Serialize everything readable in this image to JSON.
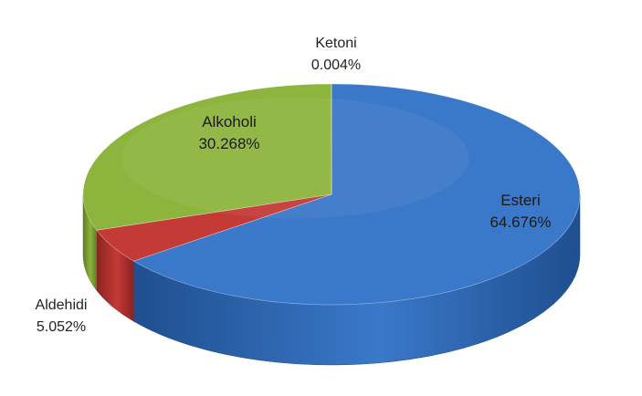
{
  "chart_data": {
    "type": "pie",
    "style": "3d",
    "title": "",
    "slices": [
      {
        "label": "Esteri",
        "value_label": "64.676%",
        "value": 64.676,
        "color": "#3a78c9",
        "side_color": "#1f4f8f"
      },
      {
        "label": "Aldehidi",
        "value_label": "5.052%",
        "value": 5.052,
        "color": "#c43a36",
        "side_color": "#8a2420"
      },
      {
        "label": "Alkoholi",
        "value_label": "30.268%",
        "value": 30.268,
        "color": "#8db43d",
        "side_color": "#5f7d25"
      },
      {
        "label": "Ketoni",
        "value_label": "0.004%",
        "value": 0.004,
        "color": "#7a5aa0",
        "side_color": "#553c72"
      }
    ],
    "legend": "none"
  }
}
